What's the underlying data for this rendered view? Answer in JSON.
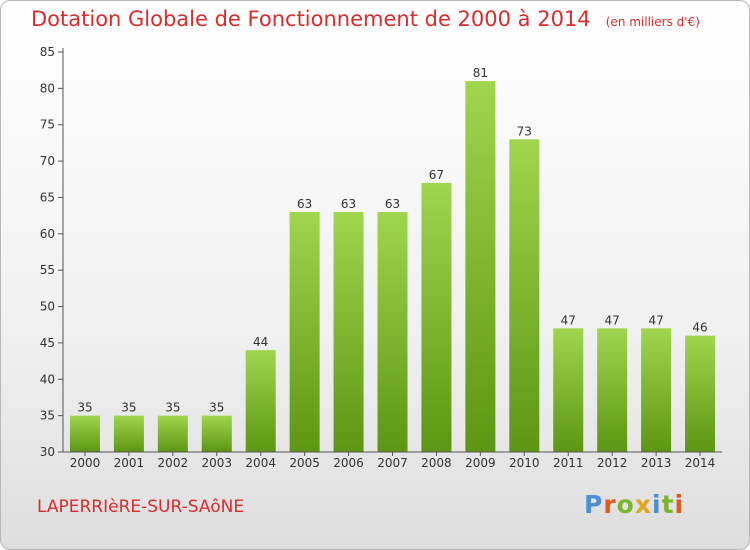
{
  "header": {
    "title": "Dotation Globale de Fonctionnement de 2000 à 2014",
    "unit": "(en milliers d'€)"
  },
  "footer": {
    "commune": "LAPERRIèRE-SUR-SAôNE",
    "brand": "Proxiti"
  },
  "colors": {
    "title": "#d92c2c",
    "bar_top": "#9fd64e",
    "bar_bottom": "#5d9612",
    "brand_letters": [
      "#4a8fd6",
      "#e05a1c",
      "#7ab52b",
      "#e2a51c",
      "#4a8fd6",
      "#7ab52b",
      "#e05a1c"
    ]
  },
  "chart_data": {
    "type": "bar",
    "title": "Dotation Globale de Fonctionnement de 2000 à 2014",
    "xlabel": "",
    "ylabel": "",
    "categories": [
      "2000",
      "2001",
      "2002",
      "2003",
      "2004",
      "2005",
      "2006",
      "2007",
      "2008",
      "2009",
      "2010",
      "2011",
      "2012",
      "2013",
      "2014"
    ],
    "values": [
      35,
      35,
      35,
      35,
      44,
      63,
      63,
      63,
      67,
      81,
      73,
      47,
      47,
      47,
      46
    ],
    "ylim": [
      30,
      85
    ],
    "yticks": [
      30,
      35,
      40,
      45,
      50,
      55,
      60,
      65,
      70,
      75,
      80,
      85
    ],
    "grid": false,
    "legend": "none"
  }
}
